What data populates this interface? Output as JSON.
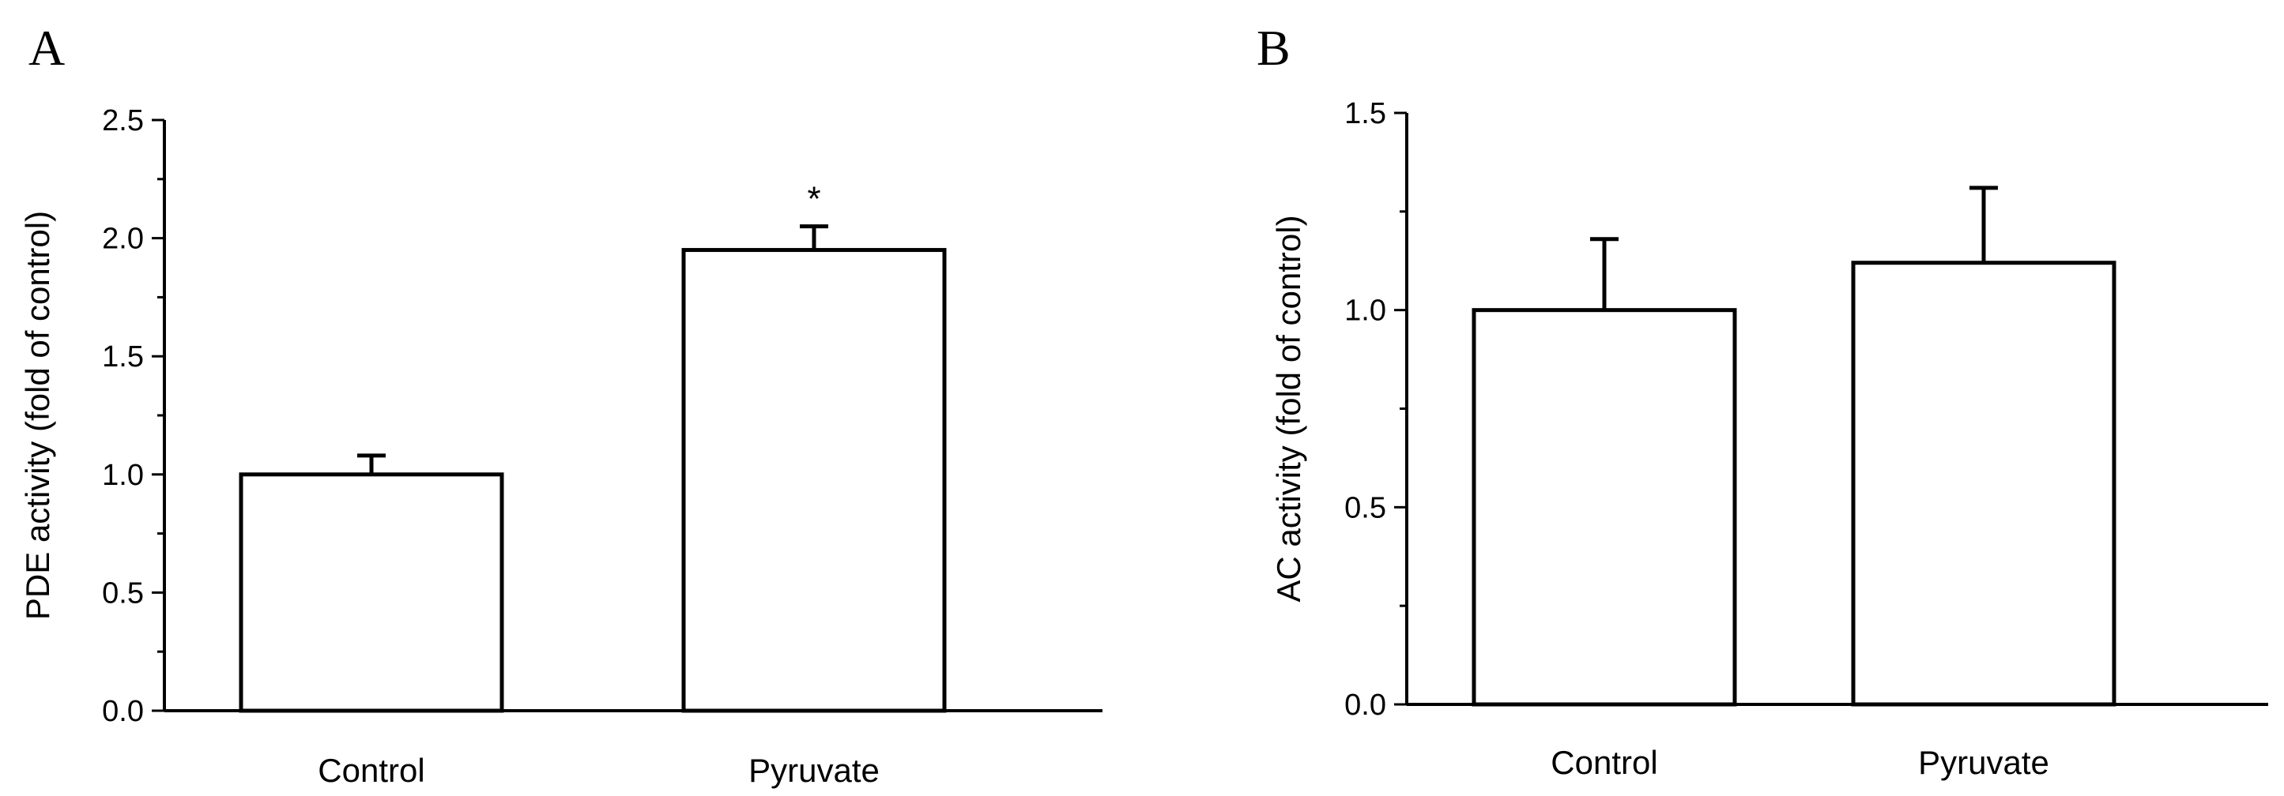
{
  "chart_data": [
    {
      "type": "bar",
      "panel_label": "A",
      "categories": [
        "Control",
        "Pyruvate"
      ],
      "values": [
        1.0,
        1.95
      ],
      "error_plus": [
        0.08,
        0.1
      ],
      "annotations": [
        "",
        "*"
      ],
      "xlabel": "",
      "ylabel": "PDE activity (fold of control)",
      "ylim": [
        0,
        2.5
      ],
      "yticks": [
        "0.0",
        "0.5",
        "1.0",
        "1.5",
        "2.0",
        "2.5"
      ],
      "grid": false,
      "legend": "none",
      "bar_fill": "#ffffff",
      "stroke_color": "#000000"
    },
    {
      "type": "bar",
      "panel_label": "B",
      "categories": [
        "Control",
        "Pyruvate"
      ],
      "values": [
        1.0,
        1.12
      ],
      "error_plus": [
        0.18,
        0.19
      ],
      "annotations": [
        "",
        ""
      ],
      "xlabel": "",
      "ylabel": "AC activity (fold of control)",
      "ylim": [
        0,
        1.5
      ],
      "yticks": [
        "0.0",
        "0.5",
        "1.0",
        "1.5"
      ],
      "grid": false,
      "legend": "none",
      "bar_fill": "#ffffff",
      "stroke_color": "#000000"
    }
  ]
}
